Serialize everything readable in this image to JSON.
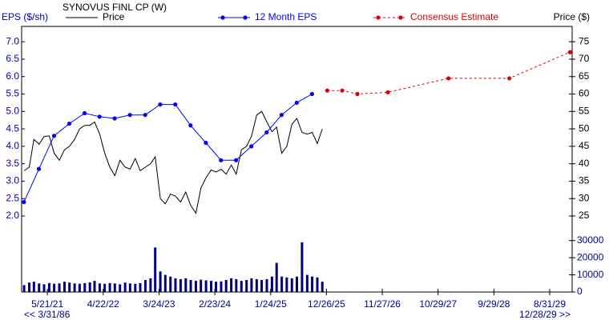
{
  "chart_data": {
    "type": "line",
    "title": "SYNOVUS FINL CP (W)",
    "y_label": "EPS ($/sh)",
    "y2_label": "Price ($)",
    "annotations": [
      "<< 3/31/86",
      "12/28/29 >>"
    ],
    "xlim": [
      "12/17/20",
      "1/13/30"
    ],
    "xticks": [
      "5/21/21",
      "4/22/22",
      "3/24/23",
      "2/23/24",
      "1/24/25",
      "12/26/25",
      "11/27/26",
      "10/29/27",
      "9/29/28",
      "8/31/29"
    ],
    "ylim": [
      -0.18,
      7.44
    ],
    "yticks": [
      {
        "value": 2,
        "label": "2.0"
      },
      2.5,
      {
        "value": 3,
        "label": "3.0"
      },
      3.5,
      {
        "value": 4,
        "label": "4.0"
      },
      4.5,
      {
        "value": 5,
        "label": "5.0"
      },
      5.5,
      {
        "value": 6,
        "label": "6.0"
      },
      6.5,
      {
        "value": 7,
        "label": "7.0"
      }
    ],
    "y2lim": [
      3.2,
      79.4
    ],
    "y2ticks": [
      25,
      30,
      35,
      40,
      45,
      50,
      55,
      60,
      65,
      70,
      75
    ],
    "y3lim": [
      0,
      155000
    ],
    "y3ticks": [
      0,
      10000,
      20000,
      30000
    ],
    "grid": false,
    "x": [
      "1/1/21",
      "2/1/21",
      "3/1/21",
      "4/1/21",
      "5/1/21",
      "6/1/21",
      "7/1/21",
      "8/1/21",
      "9/1/21",
      "10/1/21",
      "11/1/21",
      "12/1/21",
      "1/1/22",
      "2/1/22",
      "3/1/22",
      "4/1/22",
      "5/1/22",
      "6/1/22",
      "7/1/22",
      "8/1/22",
      "9/1/22",
      "10/1/22",
      "11/1/22",
      "12/1/22",
      "1/1/23",
      "2/1/23",
      "3/1/23",
      "4/1/23",
      "5/1/23",
      "6/1/23",
      "7/1/23",
      "8/1/23",
      "9/1/23",
      "10/1/23",
      "11/1/23",
      "12/1/23",
      "1/1/24",
      "2/1/24",
      "3/1/24",
      "4/1/24",
      "5/1/24",
      "6/1/24",
      "7/1/24",
      "8/1/24",
      "9/1/24",
      "10/1/24",
      "11/1/24",
      "12/1/24",
      "1/1/25",
      "2/1/25",
      "3/1/25",
      "4/1/25",
      "5/1/25",
      "6/1/25",
      "7/1/25",
      "8/1/25",
      "9/1/25",
      "10/1/25",
      "11/1/25",
      "12/1/25"
    ],
    "series": [
      {
        "name": "Price",
        "color": "#000000",
        "axis": "y2",
        "style": "line",
        "values": [
          38,
          39,
          47,
          45.6,
          47.8,
          48,
          43,
          41,
          44,
          45,
          47,
          50,
          51,
          51,
          52,
          48.5,
          43,
          39,
          36.6,
          41,
          39,
          38.5,
          41.5,
          38,
          39,
          40,
          42,
          30,
          28.5,
          31.3,
          30.7,
          29,
          31.9,
          28,
          25.8,
          33,
          36,
          38.2,
          37.6,
          38.4,
          37,
          39.6,
          37,
          44,
          45,
          47.9,
          54,
          55,
          52,
          49.2,
          50.5,
          43,
          45,
          51.3,
          53,
          49,
          48.5,
          49,
          45.8,
          50
        ]
      },
      {
        "name": "12 Month EPS",
        "color": "#0000ff",
        "axis": "y",
        "style": "line-dots",
        "x": [
          "12/31/20",
          "3/31/21",
          "6/30/21",
          "9/30/21",
          "12/31/21",
          "3/31/22",
          "6/30/22",
          "9/30/22",
          "12/31/22",
          "3/31/23",
          "6/30/23",
          "9/30/23",
          "12/31/23",
          "3/31/24",
          "6/30/24",
          "9/30/24",
          "12/31/24",
          "3/31/25",
          "6/30/25",
          "9/30/25"
        ],
        "values": [
          2.4,
          3.35,
          4.3,
          4.65,
          4.95,
          4.85,
          4.8,
          4.9,
          4.9,
          5.2,
          5.2,
          4.6,
          4.1,
          3.6,
          3.6,
          4.0,
          4.4,
          4.9,
          5.25,
          5.5
        ]
      },
      {
        "name": "Consensus Estimate",
        "color": "#e00000",
        "axis": "y",
        "style": "dashed-dots",
        "x": [
          "12/31/25",
          "3/31/26",
          "6/30/26",
          "12/31/26",
          "12/31/27",
          "12/31/28",
          "12/31/29"
        ],
        "values": [
          5.6,
          5.6,
          5.5,
          5.55,
          5.95,
          5.95,
          6.7
        ]
      },
      {
        "color": "#000080",
        "axis": "y3",
        "style": "bars",
        "values": [
          4000,
          5500,
          6000,
          5000,
          4500,
          5200,
          4800,
          5000,
          6000,
          5500,
          5000,
          4800,
          5200,
          5600,
          6500,
          5000,
          4800,
          5200,
          5000,
          4500,
          5500,
          5000,
          4800,
          5200,
          7000,
          8000,
          26000,
          12000,
          10000,
          9000,
          8000,
          7500,
          8000,
          7000,
          6500,
          7200,
          6800,
          6500,
          6000,
          6200,
          7000,
          8000,
          7500,
          6500,
          7000,
          8000,
          7500,
          7000,
          7500,
          9000,
          17000,
          9000,
          8500,
          8000,
          9000,
          29000,
          10000,
          9000,
          8500,
          6000
        ]
      }
    ]
  }
}
